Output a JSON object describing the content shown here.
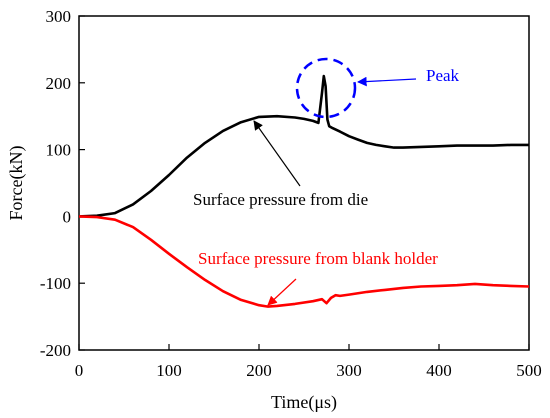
{
  "chart_data": {
    "type": "line",
    "xlabel": "Time(μs)",
    "ylabel": "Force(kN)",
    "xlim": [
      0,
      500
    ],
    "ylim": [
      -200,
      300
    ],
    "xticks": [
      0,
      100,
      200,
      300,
      400,
      500
    ],
    "yticks": [
      -200,
      -100,
      0,
      100,
      200,
      300
    ],
    "grid": false,
    "series": [
      {
        "name": "Surface pressure from die",
        "color": "#000000",
        "x": [
          0,
          20,
          40,
          60,
          80,
          100,
          120,
          140,
          160,
          180,
          200,
          220,
          240,
          250,
          260,
          266,
          270,
          272,
          274,
          276,
          278,
          282,
          290,
          300,
          310,
          320,
          330,
          340,
          350,
          360,
          380,
          400,
          420,
          440,
          460,
          480,
          500
        ],
        "values": [
          0,
          1,
          5,
          18,
          38,
          62,
          88,
          110,
          128,
          141,
          149,
          150,
          148,
          146,
          143,
          140,
          185,
          210,
          195,
          145,
          135,
          132,
          127,
          120,
          115,
          110,
          107,
          105,
          103,
          103,
          104,
          105,
          106,
          106,
          106,
          107,
          107
        ]
      },
      {
        "name": "Surface pressure from blank holder",
        "color": "#ff0000",
        "x": [
          0,
          20,
          40,
          60,
          80,
          100,
          120,
          140,
          160,
          180,
          200,
          210,
          220,
          240,
          260,
          270,
          275,
          280,
          285,
          290,
          300,
          320,
          340,
          360,
          380,
          400,
          420,
          440,
          460,
          480,
          500
        ],
        "values": [
          0,
          -1,
          -5,
          -16,
          -35,
          -56,
          -76,
          -95,
          -112,
          -125,
          -133,
          -135,
          -134,
          -131,
          -127,
          -124,
          -130,
          -122,
          -118,
          -119,
          -117,
          -113,
          -110,
          -107,
          -105,
          -104,
          -103,
          -101,
          -103,
          -104,
          -105
        ]
      }
    ],
    "annotations": [
      {
        "text": "Peak",
        "color": "#0000ff",
        "x": 270,
        "y": 195
      },
      {
        "text": "Surface pressure from die",
        "color": "#000000"
      },
      {
        "text": "Surface pressure from blank holder",
        "color": "#ff0000"
      }
    ]
  }
}
